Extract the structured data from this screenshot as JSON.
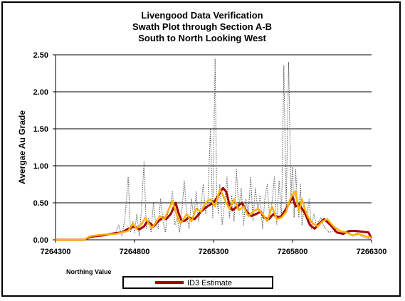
{
  "chart_data": {
    "type": "line",
    "title": [
      "Livengood Data Verification",
      "Swath Plot through Section A-B",
      "South to North Looking West"
    ],
    "xlabel": "Northing Value",
    "ylabel": "Avergae Au Grade",
    "xlim": [
      7264300,
      7266300
    ],
    "ylim": [
      0,
      2.5
    ],
    "x_ticks": [
      7264300,
      7264800,
      7265300,
      7265800,
      7266300
    ],
    "x_tick_labels": [
      "7264300",
      "7264800",
      "7265300",
      "7265800",
      "7266300"
    ],
    "y_ticks": [
      0,
      0.5,
      1.0,
      1.5,
      2.0,
      2.5
    ],
    "y_tick_labels": [
      "0.00",
      "0.50",
      "1.00",
      "1.50",
      "2.00",
      "2.50"
    ],
    "grid": "horizontal",
    "legend": {
      "placement": "bottom",
      "entries": [
        "ID3 Estimate"
      ]
    },
    "colors": {
      "id3": "#a40000",
      "orange": "#ffb000",
      "dotted": "#555555"
    },
    "series": [
      {
        "name": "ID3 Estimate",
        "style": "solid-thick",
        "x": [
          7264300,
          7264400,
          7264480,
          7264520,
          7264600,
          7264680,
          7264720,
          7264760,
          7264800,
          7264830,
          7264860,
          7264880,
          7264900,
          7264920,
          7264950,
          7264980,
          7265000,
          7265030,
          7265060,
          7265080,
          7265100,
          7265120,
          7265140,
          7265180,
          7265220,
          7265260,
          7265300,
          7265330,
          7265360,
          7265380,
          7265400,
          7265420,
          7265450,
          7265480,
          7265510,
          7265540,
          7265570,
          7265600,
          7265620,
          7265650,
          7265680,
          7265700,
          7265730,
          7265760,
          7265780,
          7265800,
          7265820,
          7265840,
          7265860,
          7265880,
          7265910,
          7265940,
          7265970,
          7266000,
          7266040,
          7266080,
          7266120,
          7266160,
          7266200,
          7266240,
          7266280,
          7266300
        ],
        "values": [
          0.0,
          0.0,
          0.0,
          0.04,
          0.06,
          0.09,
          0.1,
          0.15,
          0.18,
          0.14,
          0.18,
          0.25,
          0.22,
          0.18,
          0.25,
          0.3,
          0.28,
          0.35,
          0.5,
          0.35,
          0.25,
          0.26,
          0.3,
          0.28,
          0.38,
          0.45,
          0.5,
          0.6,
          0.7,
          0.65,
          0.48,
          0.4,
          0.45,
          0.5,
          0.38,
          0.32,
          0.35,
          0.38,
          0.3,
          0.28,
          0.35,
          0.3,
          0.32,
          0.42,
          0.5,
          0.58,
          0.45,
          0.48,
          0.42,
          0.35,
          0.2,
          0.15,
          0.22,
          0.28,
          0.2,
          0.1,
          0.08,
          0.12,
          0.12,
          0.11,
          0.1,
          0.02
        ]
      },
      {
        "name": "",
        "style": "solid-orange",
        "x": [
          7264300,
          7264400,
          7264480,
          7264520,
          7264600,
          7264680,
          7264720,
          7264760,
          7264790,
          7264810,
          7264840,
          7264870,
          7264890,
          7264910,
          7264940,
          7264960,
          7264990,
          7265010,
          7265040,
          7265070,
          7265090,
          7265110,
          7265130,
          7265160,
          7265190,
          7265220,
          7265250,
          7265280,
          7265310,
          7265340,
          7265360,
          7265380,
          7265400,
          7265430,
          7265460,
          7265490,
          7265520,
          7265550,
          7265580,
          7265610,
          7265640,
          7265670,
          7265700,
          7265730,
          7265760,
          7265780,
          7265800,
          7265820,
          7265840,
          7265860,
          7265880,
          7265900,
          7265930,
          7265960,
          7265990,
          7266020,
          7266060,
          7266100,
          7266140,
          7266180,
          7266220,
          7266260,
          7266300
        ],
        "values": [
          0.0,
          0.0,
          0.0,
          0.05,
          0.07,
          0.08,
          0.1,
          0.12,
          0.22,
          0.15,
          0.2,
          0.3,
          0.22,
          0.16,
          0.25,
          0.32,
          0.28,
          0.38,
          0.52,
          0.32,
          0.22,
          0.28,
          0.35,
          0.25,
          0.42,
          0.38,
          0.5,
          0.55,
          0.45,
          0.68,
          0.6,
          0.5,
          0.42,
          0.55,
          0.4,
          0.45,
          0.32,
          0.38,
          0.42,
          0.35,
          0.25,
          0.45,
          0.28,
          0.3,
          0.38,
          0.52,
          0.62,
          0.65,
          0.38,
          0.55,
          0.4,
          0.3,
          0.22,
          0.18,
          0.25,
          0.28,
          0.18,
          0.12,
          0.1,
          0.06,
          0.08,
          0.05,
          0.03
        ]
      },
      {
        "name": "",
        "style": "dotted",
        "x": [
          7264300,
          7264480,
          7264560,
          7264620,
          7264680,
          7264700,
          7264720,
          7264740,
          7264760,
          7264775,
          7264790,
          7264800,
          7264815,
          7264830,
          7264845,
          7264860,
          7264875,
          7264890,
          7264905,
          7264920,
          7264935,
          7264950,
          7264965,
          7264980,
          7264995,
          7265010,
          7265025,
          7265040,
          7265055,
          7265070,
          7265085,
          7265100,
          7265115,
          7265130,
          7265145,
          7265160,
          7265175,
          7265190,
          7265205,
          7265220,
          7265235,
          7265250,
          7265265,
          7265280,
          7265295,
          7265310,
          7265320,
          7265330,
          7265340,
          7265355,
          7265370,
          7265385,
          7265400,
          7265415,
          7265430,
          7265445,
          7265460,
          7265475,
          7265490,
          7265505,
          7265520,
          7265535,
          7265550,
          7265565,
          7265580,
          7265595,
          7265610,
          7265625,
          7265640,
          7265655,
          7265670,
          7265685,
          7265700,
          7265715,
          7265730,
          7265745,
          7265760,
          7265775,
          7265790,
          7265800,
          7265810,
          7265820,
          7265830,
          7265840,
          7265850,
          7265860,
          7265875,
          7265890,
          7265905,
          7265920,
          7265935,
          7265950,
          7265965,
          7265980,
          7265995,
          7266010,
          7266030,
          7266060,
          7266090,
          7266120,
          7266150,
          7266180,
          7266210,
          7266240,
          7266270,
          7266300
        ],
        "values": [
          0.0,
          0.0,
          0.05,
          0.08,
          0.1,
          0.2,
          0.05,
          0.3,
          0.85,
          0.1,
          0.25,
          0.1,
          0.35,
          0.05,
          0.45,
          1.05,
          0.15,
          0.3,
          0.1,
          0.5,
          0.2,
          0.15,
          0.55,
          0.25,
          0.1,
          0.35,
          0.45,
          0.65,
          0.2,
          0.3,
          0.1,
          0.4,
          0.8,
          0.35,
          0.15,
          0.55,
          0.3,
          0.65,
          0.25,
          0.45,
          0.75,
          0.35,
          0.55,
          1.5,
          0.3,
          2.45,
          0.6,
          0.35,
          0.75,
          0.2,
          0.5,
          0.85,
          0.3,
          0.6,
          0.25,
          0.95,
          0.4,
          0.7,
          0.2,
          0.55,
          0.35,
          0.85,
          0.25,
          0.7,
          0.4,
          0.6,
          0.15,
          0.55,
          0.75,
          0.3,
          0.5,
          0.85,
          0.2,
          0.8,
          0.3,
          2.35,
          0.4,
          2.4,
          0.6,
          1.0,
          0.3,
          0.95,
          0.5,
          0.3,
          0.75,
          0.2,
          0.45,
          0.3,
          0.55,
          0.15,
          0.35,
          0.2,
          0.25,
          0.3,
          0.2,
          0.15,
          0.1,
          0.12,
          0.08,
          0.1,
          0.12,
          0.05,
          0.1,
          0.04,
          0.02,
          0.0
        ]
      }
    ]
  }
}
